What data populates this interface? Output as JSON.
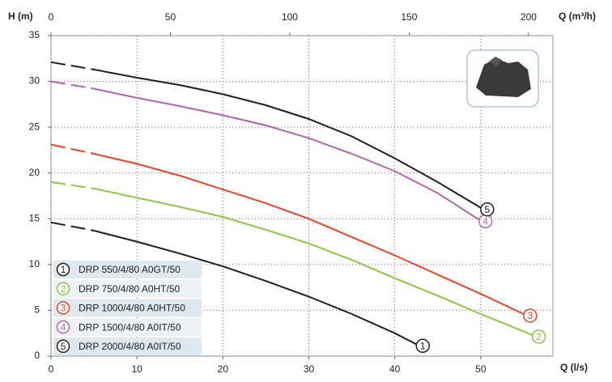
{
  "chart_data": {
    "type": "line",
    "y_label": "H (m)",
    "x_label": "Q (l/s)",
    "x2_label": "Q (m³/h)",
    "xlim": [
      0,
      58.4
    ],
    "xticks": [
      0,
      10,
      20,
      30,
      40,
      50
    ],
    "x2lim": [
      0,
      210.2
    ],
    "x2ticks": [
      0,
      50,
      100,
      150,
      200
    ],
    "ylim": [
      0,
      35
    ],
    "yticks": [
      0,
      5,
      10,
      15,
      20,
      25,
      30,
      35
    ],
    "grid": true,
    "series": [
      {
        "name": "DRP 550/4/80 A0GT/50",
        "label": "1",
        "color": "#1e1e1e",
        "x": [
          0,
          5,
          10,
          15,
          20,
          25,
          30,
          35,
          40,
          42.5
        ],
        "values": [
          14.6,
          13.7,
          12.5,
          11.2,
          9.8,
          8.2,
          6.5,
          4.6,
          2.5,
          1.3
        ]
      },
      {
        "name": "DRP 750/4/80 A0HT/50",
        "label": "2",
        "color": "#8cc540",
        "x": [
          0,
          5,
          10,
          15,
          20,
          25,
          30,
          35,
          40,
          45,
          50,
          55,
          56
        ],
        "values": [
          19,
          18.3,
          17.3,
          16.3,
          15.2,
          13.8,
          12.3,
          10.5,
          8.5,
          6.6,
          4.6,
          2.7,
          2.3
        ]
      },
      {
        "name": "DRP 1000/4/80 A0HT/50",
        "label": "3",
        "color": "#e8432b",
        "x": [
          0,
          5,
          10,
          15,
          20,
          25,
          30,
          35,
          40,
          45,
          50,
          55
        ],
        "values": [
          23.1,
          22.1,
          21,
          19.7,
          18.2,
          16.7,
          15,
          13,
          11,
          8.9,
          6.8,
          4.6
        ]
      },
      {
        "name": "DRP 1500/4/80 A0IT/50",
        "label": "4",
        "color": "#b064b0",
        "x": [
          0,
          5,
          10,
          15,
          20,
          25,
          30,
          35,
          40,
          45,
          49.8
        ],
        "values": [
          30,
          29.2,
          28.2,
          27.3,
          26.3,
          25.2,
          23.8,
          22.1,
          20.2,
          17.8,
          14.9
        ]
      },
      {
        "name": "DRP 2000/4/80 A0IT/50",
        "label": "5",
        "color": "#1e1e1e",
        "x": [
          0,
          5,
          10,
          15,
          20,
          25,
          30,
          35,
          40,
          45,
          50
        ],
        "values": [
          32.1,
          31.3,
          30.4,
          29.6,
          28.6,
          27.4,
          25.9,
          24,
          21.6,
          19,
          16.2
        ]
      }
    ]
  }
}
